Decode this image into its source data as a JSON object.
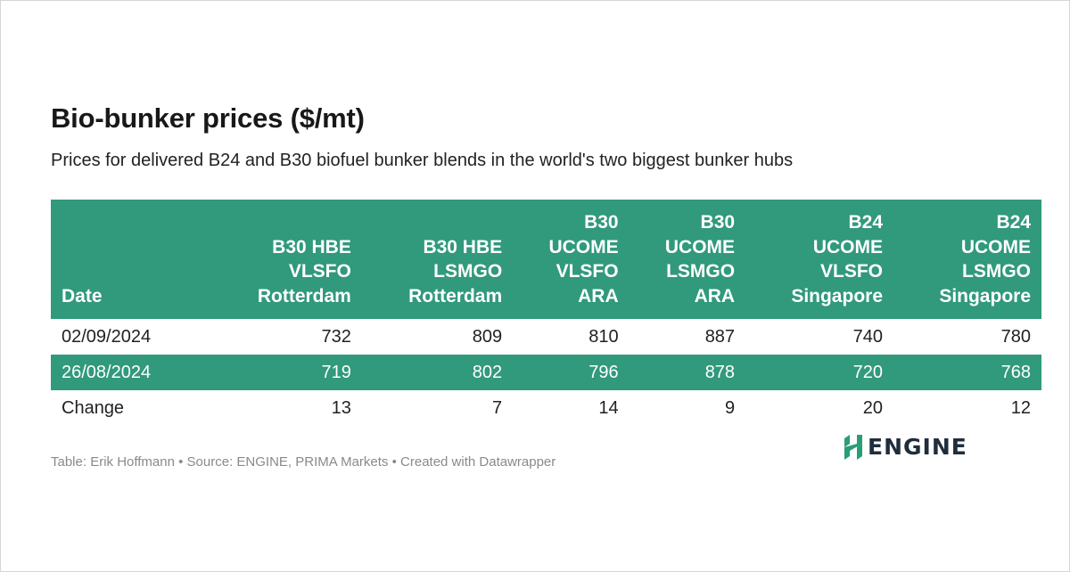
{
  "title": "Bio-bunker prices ($/mt)",
  "subtitle": "Prices for delivered B24 and B30 biofuel bunker blends in the world's two biggest bunker hubs",
  "chart_data": {
    "type": "table",
    "columns": [
      {
        "lines": [
          "Date"
        ]
      },
      {
        "lines": [
          "B30 HBE",
          "VLSFO",
          "Rotterdam"
        ]
      },
      {
        "lines": [
          "B30 HBE",
          "LSMGO",
          "Rotterdam"
        ]
      },
      {
        "lines": [
          "B30",
          "UCOME",
          "VLSFO",
          "ARA"
        ]
      },
      {
        "lines": [
          "B30",
          "UCOME",
          "LSMGO",
          "ARA"
        ]
      },
      {
        "lines": [
          "B24",
          "UCOME",
          "VLSFO",
          "Singapore"
        ]
      },
      {
        "lines": [
          "B24",
          "UCOME",
          "LSMGO",
          "Singapore"
        ]
      }
    ],
    "rows": [
      [
        "02/09/2024",
        "732",
        "809",
        "810",
        "887",
        "740",
        "780"
      ],
      [
        "26/08/2024",
        "719",
        "802",
        "796",
        "878",
        "720",
        "768"
      ],
      [
        "Change",
        "13",
        "7",
        "14",
        "9",
        "20",
        "12"
      ]
    ]
  },
  "footer": "Table: Erik Hoffmann • Source: ENGINE, PRIMA Markets • Created with Datawrapper",
  "logo": {
    "text": "ENGINE",
    "icon": "engine-logo-icon"
  },
  "colors": {
    "header_bg": "#31997c",
    "header_text": "#ffffff",
    "logo_icon": "#2a9d76",
    "logo_text": "#1f2d3d"
  }
}
